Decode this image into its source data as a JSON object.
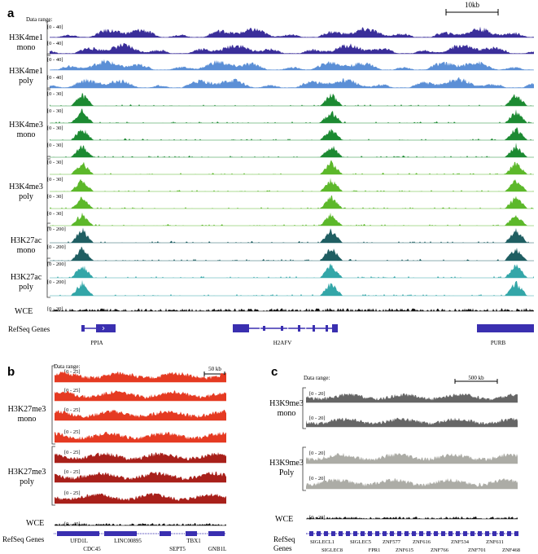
{
  "panels": [
    {
      "letter": "a",
      "data_range_label": "Data range:",
      "scale_label": "10kb",
      "groups": [
        {
          "label": [
            "H3K4me1",
            "mono"
          ],
          "color": "#3a2e9a",
          "style": "broad",
          "tracks": [
            "[0 - 40]",
            "[0 - 40]"
          ]
        },
        {
          "label": [
            "H3K4me1",
            "poly"
          ],
          "color": "#5b8fd6",
          "style": "broad",
          "tracks": [
            "[0 - 40]",
            "[0 - 40]"
          ]
        },
        {
          "label": [
            "H3K4me3",
            "mono"
          ],
          "color": "#1c8a32",
          "style": "peak",
          "tracks": [
            "[0 - 30]",
            "[0 - 30]",
            "[0 - 30]",
            "[0 - 30]"
          ]
        },
        {
          "label": [
            "H3K4me3",
            "poly"
          ],
          "color": "#5cb82a",
          "style": "peak",
          "tracks": [
            "[0 - 30]",
            "[0 - 30]",
            "[0 - 30]",
            "[0 - 30]"
          ]
        },
        {
          "label": [
            "H3K27ac",
            "mono"
          ],
          "color": "#1f5e62",
          "style": "peak",
          "tracks": [
            "[0 - 200]",
            "[0 - 200]"
          ]
        },
        {
          "label": [
            "H3K27ac",
            "poly"
          ],
          "color": "#33a6a8",
          "style": "peak",
          "tracks": [
            "[0 - 200]",
            "[0 - 200]"
          ]
        },
        {
          "label": [
            "WCE"
          ],
          "color": "#111111",
          "style": "noise",
          "tracks": [
            "[0 - 30]"
          ]
        }
      ],
      "genes_label": "RefSeq Genes",
      "gene_color": "#3a2fb0",
      "genes": [
        "PPIA",
        "H2AFV",
        "PURB"
      ]
    },
    {
      "letter": "b",
      "data_range_label": "Data range:",
      "scale_label": "50 kb",
      "groups": [
        {
          "label": [
            "H3K27me3",
            "mono"
          ],
          "color": "#e53a22",
          "style": "dense",
          "tracks": [
            "[0 - 25]",
            "[0 - 25]",
            "[0 - 25]",
            "[0 - 25]"
          ]
        },
        {
          "label": [
            "H3K27me3",
            "poly"
          ],
          "color": "#a8201a",
          "style": "dense",
          "tracks": [
            "[0 - 25]",
            "[0 - 25]",
            "[0 - 25]"
          ]
        },
        {
          "label": [
            "WCE"
          ],
          "color": "#111111",
          "style": "noise",
          "tracks": [
            "[0 - 40]"
          ]
        }
      ],
      "genes_label": "RefSeq Genes",
      "gene_color": "#3a2fb0",
      "genes_top": [
        "UFD1L",
        "LINC00895",
        "TBX1"
      ],
      "genes_bottom": [
        "CDC45",
        "SEPT5",
        "GNB1L"
      ]
    },
    {
      "letter": "c",
      "data_range_label": "Data range:",
      "scale_label": "500 kb",
      "groups": [
        {
          "label": [
            "H3K9me3",
            "mono"
          ],
          "color": "#666666",
          "style": "dense",
          "tracks": [
            "[0 - 20]",
            "[0 - 20]"
          ]
        },
        {
          "label": [
            "H3K9me3",
            "Poly"
          ],
          "color": "#acaca6",
          "style": "dense",
          "tracks": [
            "[0 - 20]",
            "[0 - 20]"
          ]
        },
        {
          "label": [
            "WCE"
          ],
          "color": "#111111",
          "style": "noise",
          "tracks": [
            "[0 - 20]"
          ]
        }
      ],
      "genes_label": [
        "RefSeq",
        "Genes"
      ],
      "gene_color": "#3a2fb0",
      "genes_top": [
        "SIGLECL1",
        "SIGLEC5",
        "ZNF577",
        "ZNF616",
        "ZNF534",
        "ZNF611"
      ],
      "genes_bottom": [
        "SIGLEC8",
        "FPR1",
        "ZNF615",
        "ZNF766",
        "ZNF701",
        "ZNF468"
      ]
    }
  ]
}
